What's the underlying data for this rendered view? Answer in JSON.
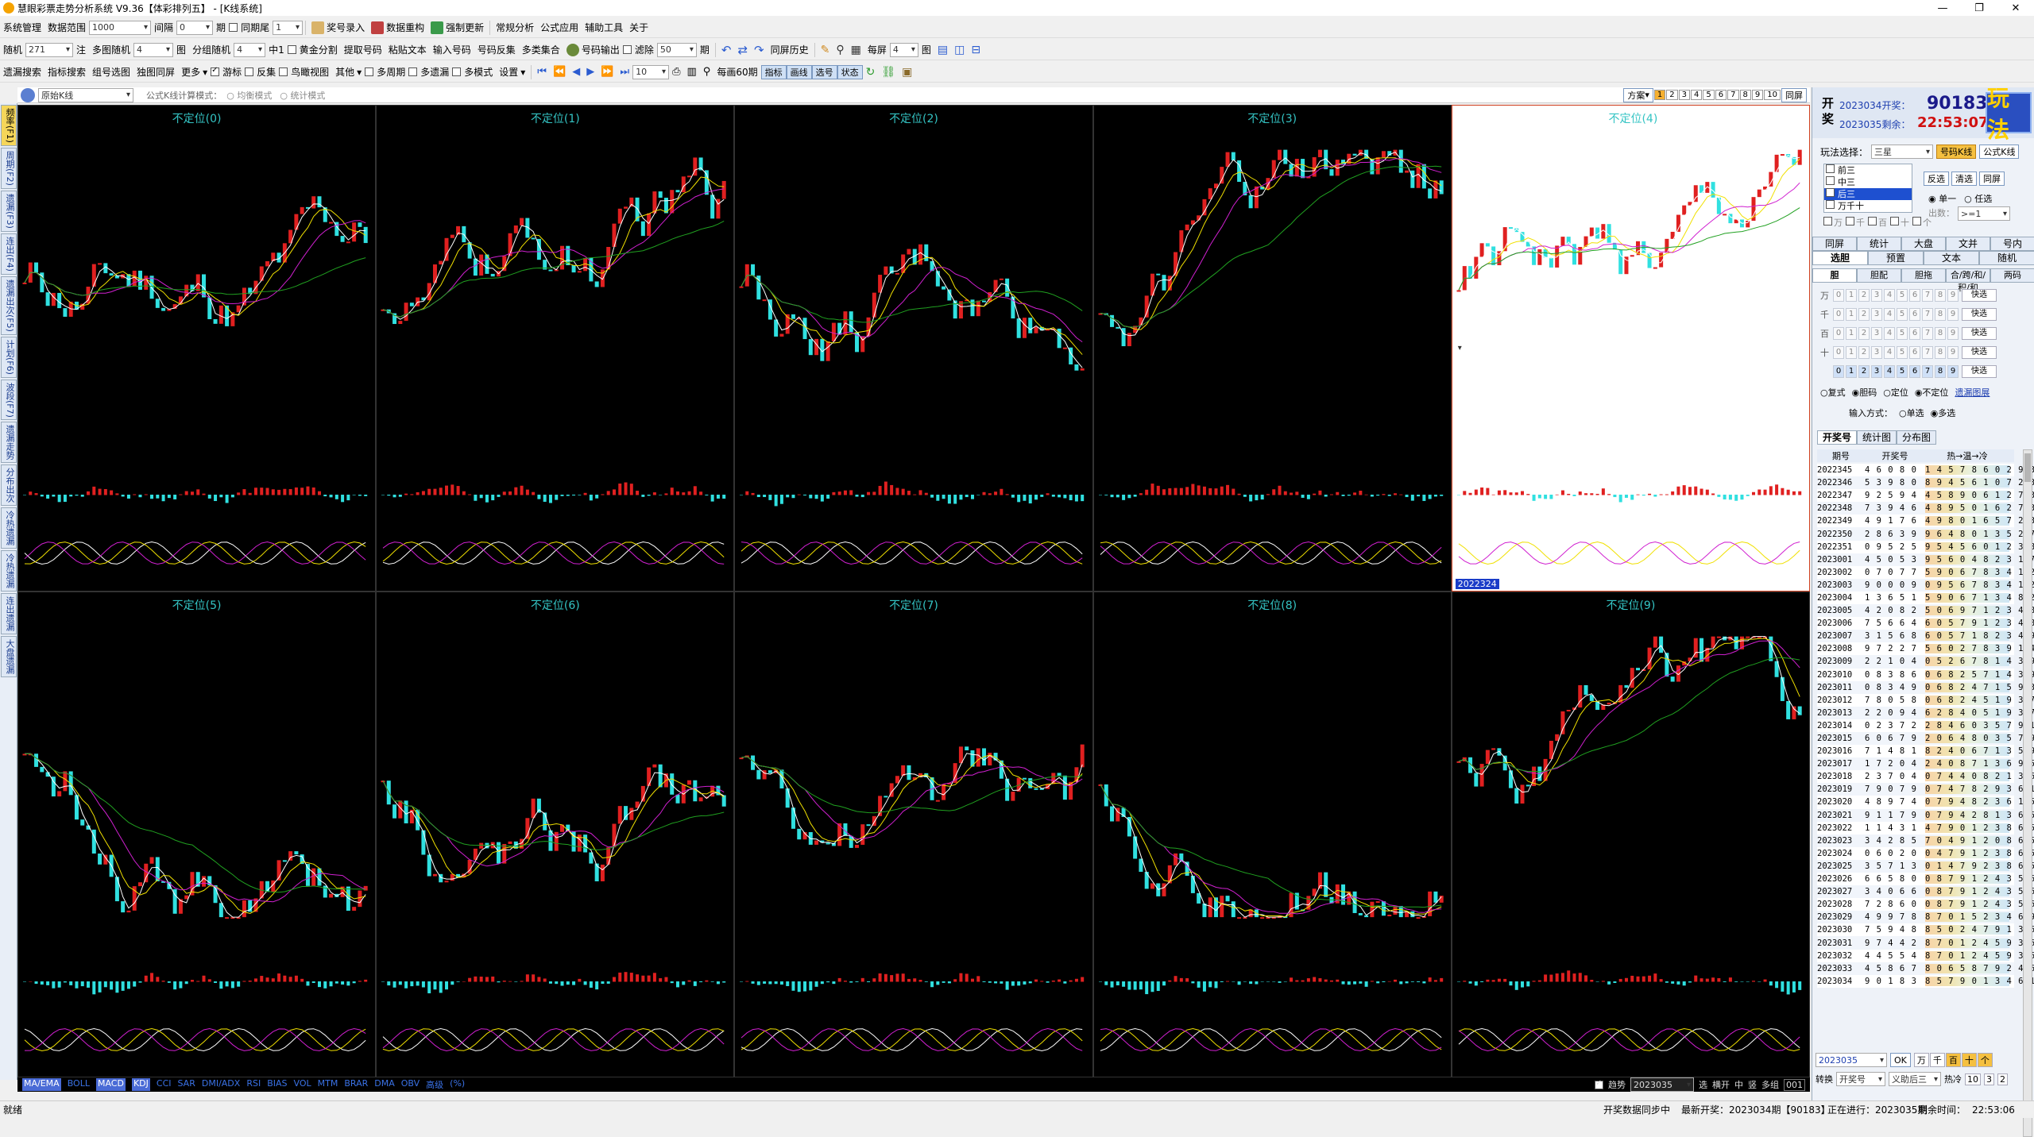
{
  "window": {
    "title": "慧眼彩票走势分析系统 V9.36【体彩排列五】 - [K线系统]",
    "controls": [
      "—",
      "❐",
      "✕"
    ]
  },
  "menu1": {
    "system": "系统管理",
    "range_label": "数据范围",
    "range_value": "1000",
    "gap_label": "间隔",
    "gap_value": "0",
    "period_unit": "期",
    "same_tail": "同期尾",
    "same_tail_value": "1",
    "prize_entry": "奖号录入",
    "data_refresh": "数据重构",
    "force_update": "强制更新",
    "regular_analysis": "常规分析",
    "formula_app": "公式应用",
    "aux_tools": "辅助工具",
    "about": "关于"
  },
  "menu2": {
    "random": "随机",
    "random_value": "271",
    "bet_unit": "注",
    "multi_random": "多图随机",
    "multi_value": "4",
    "pic": "图",
    "group_random": "分组随机",
    "group_value": "4",
    "hit": "中1",
    "golden": "黄金分割",
    "extract_nums": "提取号码",
    "paste_text": "粘贴文本",
    "input_nums": "输入号码",
    "num_reverse": "号码反集",
    "multi_class": "多类集合",
    "num_output": "号码输出",
    "filter": "滤除",
    "filter_value": "50",
    "period_unit": "期",
    "same_history": "同屏历史",
    "per_screen": "每屏",
    "per_screen_value": "4",
    "pic_unit": "图"
  },
  "menu3": {
    "filter_search": "遗漏搜索",
    "index_search": "指标搜索",
    "group_select": "组号选图",
    "single_screen": "独图同屏",
    "more": "更多",
    "cursor": "游标",
    "reverse": "反集",
    "birdview": "鸟瞰视图",
    "other": "其他",
    "multi_period": "多周期",
    "multi_missing": "多遗漏",
    "multi_mode": "多模式",
    "settings": "设置",
    "step_value": "10",
    "per_60": "每画60期",
    "btn_index": "指标",
    "btn_draw": "画线",
    "btn_select": "选号",
    "btn_state": "状态"
  },
  "chart_header": {
    "chart_type": "原始K线",
    "calc_mode_label": "公式K线计算模式：",
    "mode_avg": "均衡模式",
    "mode_stat": "统计模式",
    "scheme": "方案",
    "scheme_pages": [
      "1",
      "2",
      "3",
      "4",
      "5",
      "6",
      "7",
      "8",
      "9",
      "10"
    ],
    "same_screen": "同屏"
  },
  "left_tabs": [
    "频率(F1)",
    "周期(F2)",
    "遗漏(F3)",
    "连出(F4)",
    "遗漏出次(F5)",
    "计划(F6)",
    "波段(F7)",
    "遗漏走势",
    "分布出次",
    "冷热遗漏",
    "冷热遗漏",
    "连出遗漏",
    "大盘遗漏"
  ],
  "panels": [
    {
      "title": "不定位(0)"
    },
    {
      "title": "不定位(1)"
    },
    {
      "title": "不定位(2)"
    },
    {
      "title": "不定位(3)"
    },
    {
      "title": "不定位(4)",
      "badge": "2022324"
    },
    {
      "title": "不定位(5)"
    },
    {
      "title": "不定位(6)"
    },
    {
      "title": "不定位(7)"
    },
    {
      "title": "不定位(8)"
    },
    {
      "title": "不定位(9)"
    }
  ],
  "indicators": [
    "MA/EMA",
    "BOLL",
    "MACD",
    "KDJ",
    "CCI",
    "SAR",
    "DMI/ADX",
    "RSI",
    "BIAS",
    "VOL",
    "MTM",
    "BRAR",
    "DMA",
    "OBV",
    "高级",
    "(%)"
  ],
  "chart_footer_right": {
    "cb_label": "趋势",
    "period_value": "2023035",
    "zoom_label": "选",
    "options": [
      "横开",
      "中",
      "竖",
      "多组"
    ],
    "count": "001"
  },
  "right": {
    "kai": "开",
    "jiang": "奖",
    "open_line": "2023034开奖：",
    "open_num": "90183",
    "remain_line": "2023035剩余：",
    "remain_time": "22:53:07",
    "play_btn": "玩法",
    "play_select_label": "玩法选择：",
    "play_select_value": "三星",
    "num_filter_btn": "号码K线",
    "formula_btn": "公式K线",
    "play_options": [
      "前三",
      "中三",
      "后三",
      "万千十"
    ],
    "reverse_btn": "反选",
    "clear_btn": "清选",
    "same_screen_btn": "同屏",
    "single": "单一",
    "any": "任选",
    "out_label": "出数：",
    "out_value": ">=1",
    "pos_checks": [
      "万",
      "千",
      "百",
      "十",
      "个"
    ],
    "tabs1": [
      "同屏",
      "统计",
      "大盘",
      "文并",
      "号内"
    ],
    "tabs2": [
      "选胆",
      "预置",
      "文本",
      "随机"
    ],
    "tabs3": [
      "胆",
      "胆配",
      "胆拖",
      "合/跨/和/积/和",
      "两码"
    ],
    "digit_rows": [
      {
        "label": "万",
        "quick": "快选"
      },
      {
        "label": "千",
        "quick": "快选"
      },
      {
        "label": "百",
        "quick": "快选"
      },
      {
        "label": "十",
        "quick": "快选"
      },
      {
        "label": "",
        "quick": "快选"
      }
    ],
    "digits": [
      "0",
      "1",
      "2",
      "3",
      "4",
      "5",
      "6",
      "7",
      "8",
      "9"
    ],
    "mode_opts": [
      "复式",
      "胆码",
      "定位",
      "不定位"
    ],
    "hot_tip": "遗漏图展",
    "input_label": "输入方式：",
    "input_single": "单选",
    "input_multi": "多选",
    "tabs4": [
      "开奖号",
      "统计图",
      "分布图"
    ],
    "table_headers": [
      "期号",
      "开奖号",
      "热→温→冷"
    ],
    "rows": [
      {
        "p": "2022345",
        "n": "4 6 0 8 0",
        "h": "1 4 5 7 8 6 0 2 9 3"
      },
      {
        "p": "2022346",
        "n": "5 3 9 8 0",
        "h": "8 9 4 5 6 1 0 7 2 3"
      },
      {
        "p": "2022347",
        "n": "9 2 5 9 4",
        "h": "4 5 8 9 0 6 1 2 7 3"
      },
      {
        "p": "2022348",
        "n": "7 3 9 4 6",
        "h": "4 8 9 5 0 1 6 2 7 3"
      },
      {
        "p": "2022349",
        "n": "4 9 1 7 6",
        "h": "4 9 8 0 1 6 5 7 2 3"
      },
      {
        "p": "2022350",
        "n": "2 8 6 3 9",
        "h": "9 6 4 8 0 1 3 5 2 7"
      },
      {
        "p": "2022351",
        "n": "0 9 5 2 5",
        "h": "9 5 4 5 6 0 1 2 3 8 7"
      },
      {
        "p": "2023001",
        "n": "4 5 0 5 3",
        "h": "9 5 6 0 4 8 2 3 1 7"
      },
      {
        "p": "2023002",
        "n": "0 7 0 7 7",
        "h": "5 9 0 6 7 8 3 4 1 2"
      },
      {
        "p": "2023003",
        "n": "9 0 0 0 9",
        "h": "0 9 5 6 7 8 3 4 1 2"
      },
      {
        "p": "2023004",
        "n": "1 3 6 5 1",
        "h": "5 9 0 6 7 1 3 4 8 2"
      },
      {
        "p": "2023005",
        "n": "4 2 0 8 2",
        "h": "5 0 6 9 7 1 2 3 4 8"
      },
      {
        "p": "2023006",
        "n": "7 5 6 6 4",
        "h": "6 0 5 7 9 1 2 3 4 8"
      },
      {
        "p": "2023007",
        "n": "3 1 5 6 8",
        "h": "6 0 5 7 1 8 2 3 4 9"
      },
      {
        "p": "2023008",
        "n": "9 7 2 2 7",
        "h": "5 6 0 2 7 8 3 9 1 4"
      },
      {
        "p": "2023009",
        "n": "2 2 1 0 4",
        "h": "0 5 2 6 7 8 1 4 3 9"
      },
      {
        "p": "2023010",
        "n": "0 8 3 8 6",
        "h": "0 6 8 2 5 7 1 4 3 9"
      },
      {
        "p": "2023011",
        "n": "0 8 3 4 9",
        "h": "0 6 8 2 4 7 1 5 9 3"
      },
      {
        "p": "2023012",
        "n": "7 8 0 5 8",
        "h": "0 6 8 2 4 5 1 9 3 7"
      },
      {
        "p": "2023013",
        "n": "2 2 0 9 4",
        "h": "6 2 8 4 0 5 1 9 3 7"
      },
      {
        "p": "2023014",
        "n": "0 2 3 7 2",
        "h": "2 8 4 6 0 3 5 7 9 1"
      },
      {
        "p": "2023015",
        "n": "6 0 6 7 9",
        "h": "2 0 6 4 8 0 3 5 7 9 1"
      },
      {
        "p": "2023016",
        "n": "7 1 4 8 1",
        "h": "8 2 4 0 6 7 1 3 5 9"
      },
      {
        "p": "2023017",
        "n": "1 7 2 0 4",
        "h": "2 4 0 8 7 1 3 6 9 5"
      },
      {
        "p": "2023018",
        "n": "2 3 7 0 4",
        "h": "0 7 4 4 0 8 2 1 3 6 9 5"
      },
      {
        "p": "2023019",
        "n": "7 9 0 7 9",
        "h": "0 7 4 7 8 2 9 3 6 1 5"
      },
      {
        "p": "2023020",
        "n": "4 8 9 7 4",
        "h": "0 7 9 4 8 2 3 6 1 5"
      },
      {
        "p": "2023021",
        "n": "9 1 1 7 9",
        "h": "0 7 9 4 2 8 1 3 6 5"
      },
      {
        "p": "2023022",
        "n": "1 1 4 3 1",
        "h": "4 7 9 0 1 2 3 8 6 5"
      },
      {
        "p": "2023023",
        "n": "3 4 2 8 5",
        "h": "7 0 4 9 1 2 0 8 6 5"
      },
      {
        "p": "2023024",
        "n": "0 6 0 2 0",
        "h": "0 4 7 9 1 2 3 8 6 5"
      },
      {
        "p": "2023025",
        "n": "3 5 7 1 3",
        "h": "0 1 4 7 9 2 3 8 6 5"
      },
      {
        "p": "2023026",
        "n": "6 6 5 8 0",
        "h": "0 8 7 9 1 2 4 3 5 6"
      },
      {
        "p": "2023027",
        "n": "3 4 0 6 6",
        "h": "0 8 7 9 1 2 4 3 5 6"
      },
      {
        "p": "2023028",
        "n": "7 2 8 6 0",
        "h": "0 8 7 9 1 2 4 3 5 6"
      },
      {
        "p": "2023029",
        "n": "4 9 9 7 8",
        "h": "8 7 0 1 5 2 3 4 6 9"
      },
      {
        "p": "2023030",
        "n": "7 5 9 4 8",
        "h": "8 5 0 2 4 7 9 1 3 6"
      },
      {
        "p": "2023031",
        "n": "9 7 4 4 2",
        "h": "8 7 0 1 2 4 5 9 3 6"
      },
      {
        "p": "2023032",
        "n": "4 4 5 5 4",
        "h": "8 7 0 1 2 4 5 9 3 6"
      },
      {
        "p": "2023033",
        "n": "4 5 8 6 7",
        "h": "8 0 6 5 8 7 9 2 4 6 1 3"
      },
      {
        "p": "2023034",
        "n": "9 0 1 8 3",
        "h": "8 5 7 9 0 1 3 4 6 1 3"
      }
    ],
    "bottom_period": "2023035",
    "bottom_ok": "OK",
    "bottom_pos": [
      "万",
      "千",
      "百",
      "十",
      "个"
    ],
    "convert_label": "转换",
    "convert_value": "开奖号",
    "transform_label": "义助后三",
    "hot_label": "热冷",
    "hot_vals": [
      "10",
      "3",
      "2"
    ]
  },
  "status": {
    "left": "就绪",
    "sync": "开奖数据同步中",
    "latest": "最新开奖：2023034期【90183】",
    "current": "正在进行：2023035期",
    "remain": "剩余时间：",
    "clock": "22:53:06"
  }
}
